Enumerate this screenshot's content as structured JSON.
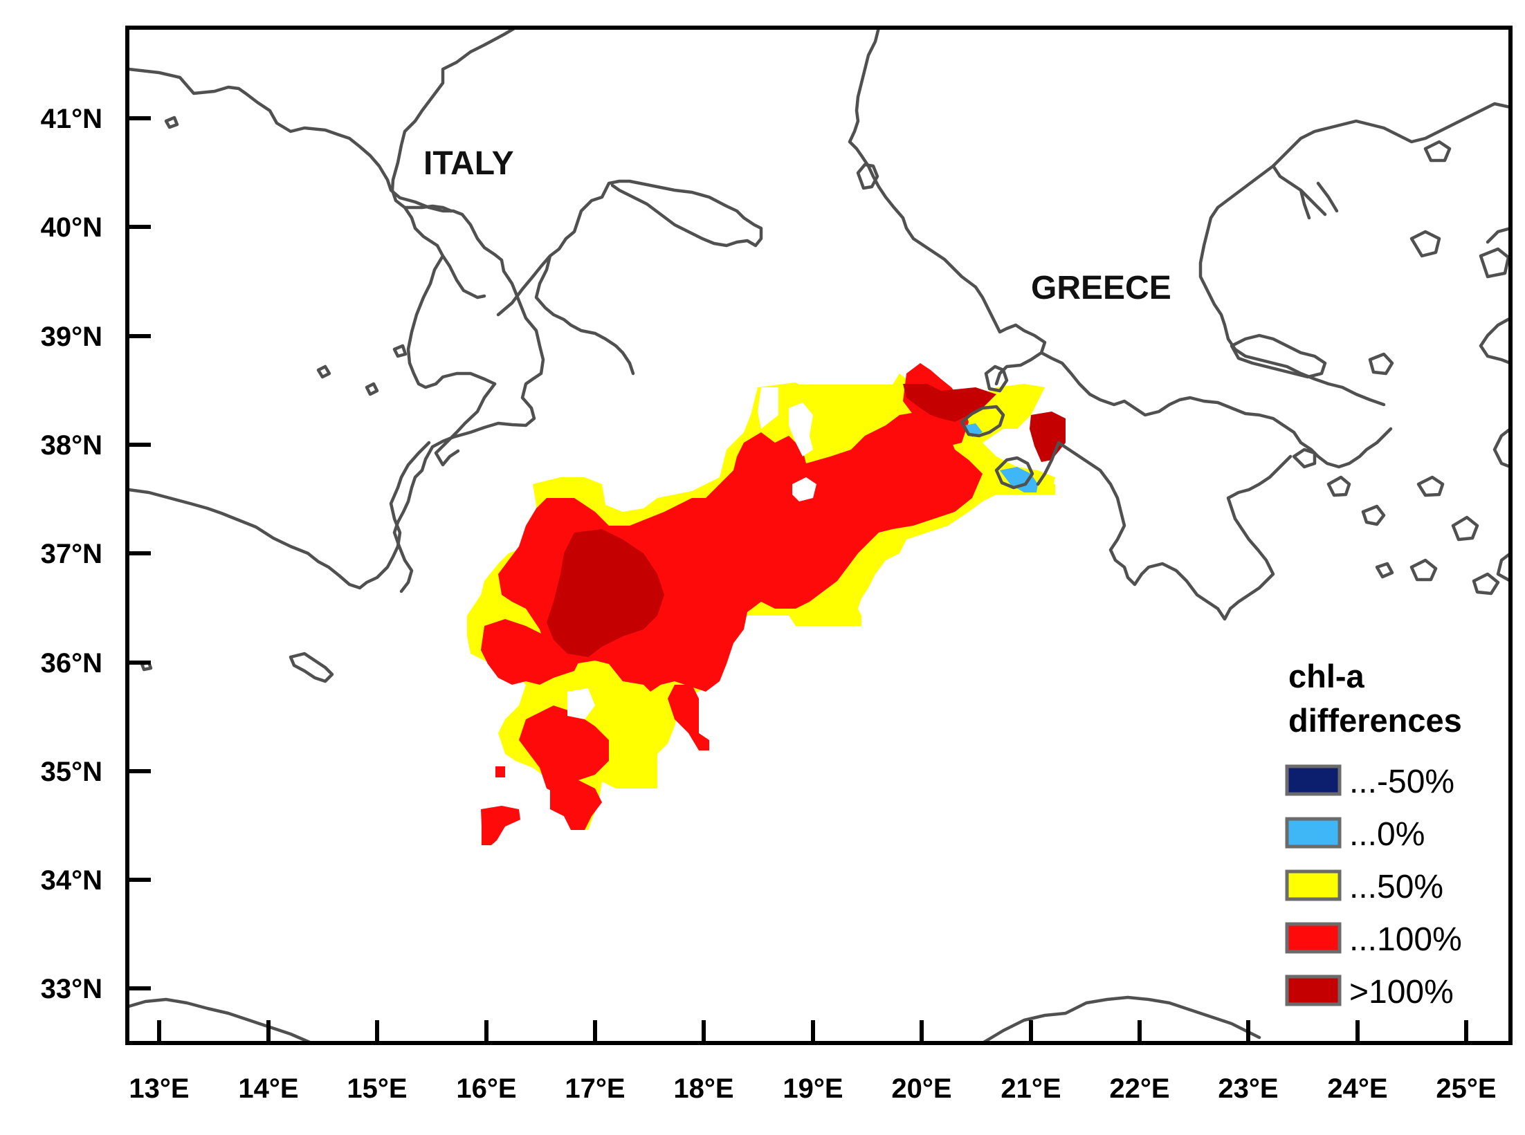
{
  "map": {
    "labels": {
      "italy": "ITALY",
      "greece": "GREECE"
    },
    "y_ticks": [
      "41°N",
      "40°N",
      "39°N",
      "38°N",
      "37°N",
      "36°N",
      "35°N",
      "34°N",
      "33°N"
    ],
    "x_ticks": [
      "13°E",
      "14°E",
      "15°E",
      "16°E",
      "17°E",
      "18°E",
      "19°E",
      "20°E",
      "21°E",
      "22°E",
      "23°E",
      "24°E",
      "25°E"
    ],
    "lat_range": [
      32.5,
      41.8
    ],
    "lon_range": [
      12.7,
      25.4
    ],
    "coastline_color": "#505050"
  },
  "legend": {
    "title_line1": "chl-a",
    "title_line2": "differences",
    "items": [
      {
        "label": "...-50%",
        "color": "#0b1f6e"
      },
      {
        "label": "...0%",
        "color": "#3fb6f5"
      },
      {
        "label": "...50%",
        "color": "#ffff00"
      },
      {
        "label": "...100%",
        "color": "#ff0a0a"
      },
      {
        "label": ">100%",
        "color": "#c40000"
      }
    ]
  }
}
